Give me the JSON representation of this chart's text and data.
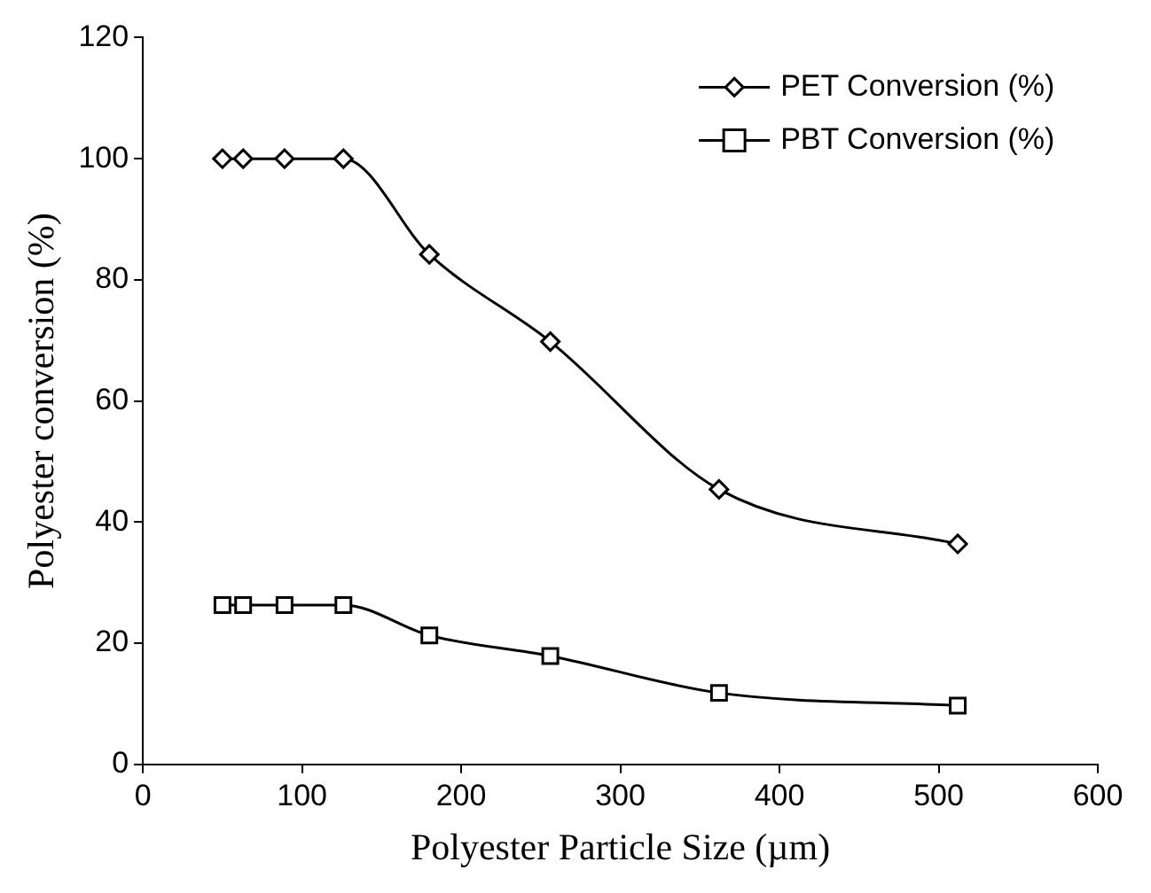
{
  "chart_data": {
    "type": "line",
    "xlabel": "Polyester Particle Size (µm)",
    "ylabel": "Polyester conversion (%)",
    "xlim": [
      0,
      600
    ],
    "xticks": [
      0,
      100,
      200,
      300,
      400,
      500,
      600
    ],
    "ylim": [
      0,
      120
    ],
    "yticks": [
      0,
      20,
      40,
      60,
      80,
      100,
      120
    ],
    "grid": false,
    "legend": "top right",
    "series": [
      {
        "name": "PET Conversion (%)",
        "color": "#000000",
        "marker": "diamond",
        "x": [
          50,
          63,
          89,
          126,
          180,
          256,
          362,
          512
        ],
        "values": [
          100,
          100,
          100,
          100,
          84.2,
          69.8,
          45.4,
          36.4
        ]
      },
      {
        "name": "PBT Conversion (%)",
        "color": "#000000",
        "marker": "square",
        "x": [
          50,
          63,
          89,
          126,
          180,
          256,
          362,
          512
        ],
        "values": [
          26.3,
          26.3,
          26.3,
          26.3,
          21.3,
          17.9,
          11.8,
          9.7
        ]
      }
    ]
  }
}
